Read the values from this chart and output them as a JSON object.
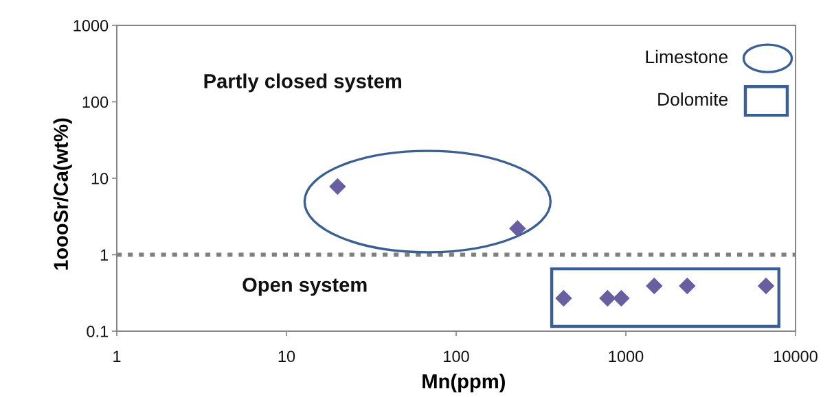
{
  "chart_data": {
    "type": "scatter",
    "xlabel": "Mn(ppm)",
    "ylabel": "1oooSr/Ca(wt%)",
    "log": "xy",
    "xlim": [
      1,
      10000
    ],
    "ylim": [
      0.1,
      1000
    ],
    "xticks": [
      1,
      10,
      100,
      1000,
      10000
    ],
    "yticks": [
      0.1,
      1,
      10,
      100,
      1000
    ],
    "marker": "diamond",
    "series": [
      {
        "color": "#675f9f",
        "x": [
          20,
          230
        ],
        "values": [
          7.8,
          2.2
        ]
      },
      {
        "color": "#675f9f",
        "x": [
          430,
          780,
          940,
          1470,
          2300,
          6700
        ],
        "values": [
          0.27,
          0.27,
          0.27,
          0.39,
          0.39,
          0.39
        ]
      }
    ],
    "ref_lines": [
      {
        "axis": "y",
        "value": 1,
        "color": "#808080",
        "line_style": "dotted"
      }
    ],
    "annotations": [
      "Partly closed system",
      "Open system",
      "Limestone",
      "Dolomite"
    ]
  }
}
